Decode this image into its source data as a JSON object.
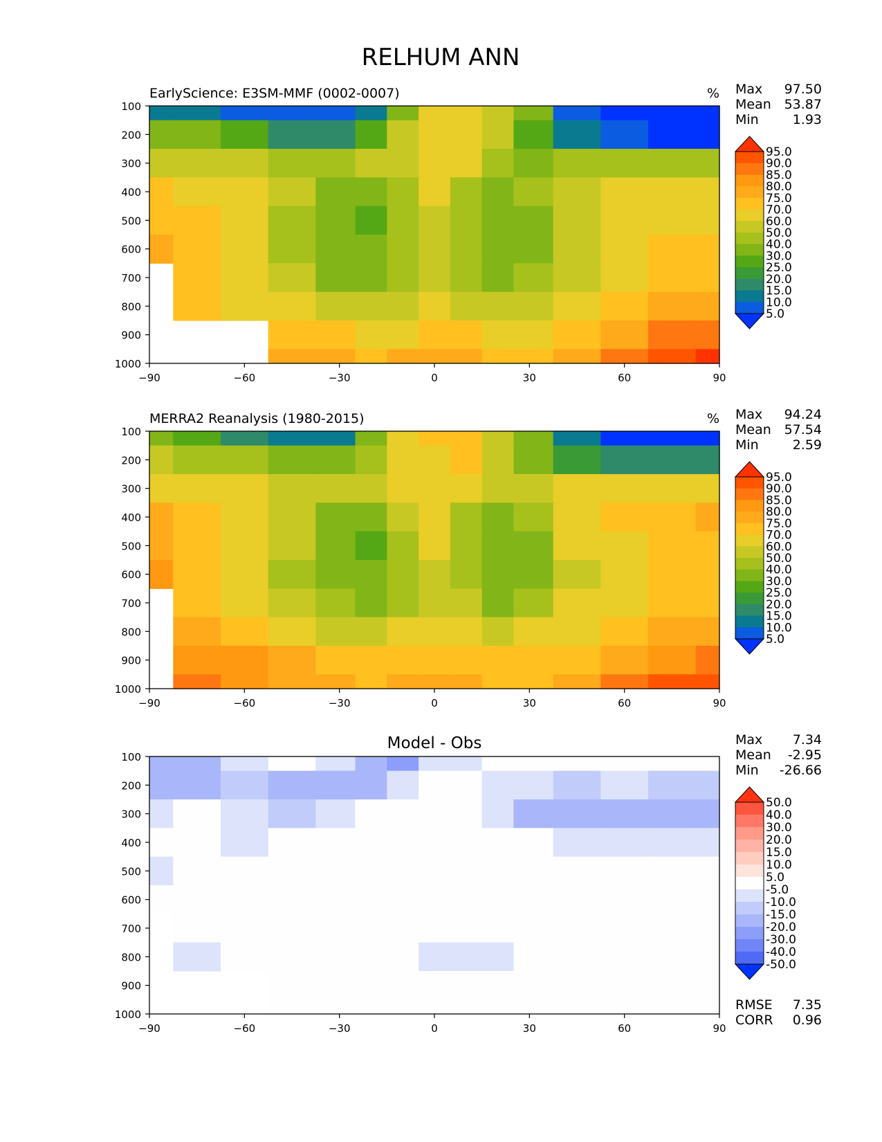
{
  "title": "RELHUM ANN",
  "panels": [
    {
      "title": "EarlyScience: E3SM-MMF (0002-0007)",
      "units": "%",
      "stats": [
        {
          "label": "Max",
          "value": "97.50"
        },
        {
          "label": "Mean",
          "value": "53.87"
        },
        {
          "label": "Min",
          "value": "1.93"
        }
      ],
      "colorbar": {
        "levels": [
          "95.0",
          "90.0",
          "85.0",
          "80.0",
          "75.0",
          "70.0",
          "60.0",
          "50.0",
          "40.0",
          "30.0",
          "25.0",
          "20.0",
          "15.0",
          "10.0",
          "5.0"
        ],
        "colors": [
          "#ff3300",
          "#ff5500",
          "#ff7711",
          "#ff9911",
          "#ffaa1a",
          "#ffc020",
          "#e9cd28",
          "#c8c825",
          "#a6c01c",
          "#82b518",
          "#55a815",
          "#3a9a35",
          "#2f8a6a",
          "#0a7a90",
          "#0b5ce0",
          "#0033ff"
        ]
      }
    },
    {
      "title": "MERRA2 Reanalysis (1980-2015)",
      "units": "%",
      "stats": [
        {
          "label": "Max",
          "value": "94.24"
        },
        {
          "label": "Mean",
          "value": "57.54"
        },
        {
          "label": "Min",
          "value": "2.59"
        }
      ],
      "colorbar": {
        "levels": [
          "95.0",
          "90.0",
          "85.0",
          "80.0",
          "75.0",
          "70.0",
          "60.0",
          "50.0",
          "40.0",
          "30.0",
          "25.0",
          "20.0",
          "15.0",
          "10.0",
          "5.0"
        ],
        "colors": [
          "#ff3300",
          "#ff5500",
          "#ff7711",
          "#ff9911",
          "#ffaa1a",
          "#ffc020",
          "#e9cd28",
          "#c8c825",
          "#a6c01c",
          "#82b518",
          "#55a815",
          "#3a9a35",
          "#2f8a6a",
          "#0a7a90",
          "#0b5ce0",
          "#0033ff"
        ]
      }
    },
    {
      "title": "Model - Obs",
      "units": "",
      "stats": [
        {
          "label": "Max",
          "value": "7.34"
        },
        {
          "label": "Mean",
          "value": "-2.95"
        },
        {
          "label": "Min",
          "value": "-26.66"
        }
      ],
      "colorbar": {
        "levels": [
          "50.0",
          "40.0",
          "30.0",
          "20.0",
          "15.0",
          "10.0",
          "5.0",
          "-5.0",
          "-10.0",
          "-15.0",
          "-20.0",
          "-30.0",
          "-40.0",
          "-50.0"
        ],
        "colors": [
          "#ff3311",
          "#ff5540",
          "#ff7766",
          "#ff9988",
          "#ffb3a6",
          "#ffccc0",
          "#ffe3dd",
          "#fefefe",
          "#dce3fb",
          "#c2ccfa",
          "#a9b7fa",
          "#8c9efa",
          "#6f85f8",
          "#4f6af5",
          "#0033ff"
        ]
      },
      "metrics": [
        {
          "label": "RMSE",
          "value": "7.35"
        },
        {
          "label": "CORR",
          "value": "0.96"
        }
      ]
    }
  ],
  "chart_data": [
    {
      "type": "heatmap",
      "title": "EarlyScience: E3SM-MMF (0002-0007)",
      "units": "%",
      "x_ticks": [
        -90,
        -60,
        -30,
        0,
        30,
        60,
        90
      ],
      "y_ticks": [
        100,
        200,
        300,
        400,
        500,
        600,
        700,
        800,
        900,
        1000
      ],
      "xlim": [
        -90,
        90
      ],
      "ylim": [
        1000,
        100
      ],
      "x": [
        -90,
        -75,
        -60,
        -45,
        -30,
        -20,
        -10,
        0,
        10,
        20,
        30,
        45,
        60,
        75,
        90
      ],
      "y": [
        100,
        200,
        300,
        400,
        500,
        600,
        700,
        800,
        900,
        1000
      ],
      "z": [
        [
          10,
          12,
          6,
          5,
          5,
          12,
          38,
          62,
          62,
          55,
          30,
          5,
          3,
          2,
          2
        ],
        [
          30,
          32,
          25,
          18,
          18,
          28,
          55,
          65,
          66,
          50,
          25,
          10,
          5,
          3,
          3
        ],
        [
          55,
          58,
          52,
          45,
          48,
          52,
          58,
          62,
          60,
          45,
          38,
          42,
          45,
          40,
          40
        ],
        [
          70,
          68,
          62,
          55,
          35,
          32,
          45,
          60,
          48,
          38,
          42,
          58,
          62,
          65,
          65
        ],
        [
          72,
          70,
          62,
          48,
          30,
          26,
          42,
          58,
          40,
          32,
          36,
          55,
          65,
          68,
          68
        ],
        [
          78,
          70,
          62,
          45,
          32,
          30,
          42,
          56,
          42,
          34,
          36,
          55,
          65,
          70,
          70
        ],
        [
          null,
          70,
          65,
          52,
          38,
          36,
          45,
          56,
          48,
          38,
          42,
          58,
          66,
          72,
          72
        ],
        [
          null,
          70,
          68,
          62,
          55,
          50,
          55,
          60,
          56,
          52,
          55,
          62,
          70,
          75,
          78
        ],
        [
          null,
          null,
          null,
          72,
          70,
          66,
          68,
          70,
          70,
          68,
          68,
          70,
          78,
          85,
          88
        ],
        [
          null,
          null,
          null,
          78,
          75,
          72,
          76,
          78,
          76,
          72,
          72,
          76,
          85,
          92,
          97
        ]
      ]
    },
    {
      "type": "heatmap",
      "title": "MERRA2 Reanalysis (1980-2015)",
      "units": "%",
      "x_ticks": [
        -90,
        -60,
        -30,
        0,
        30,
        60,
        90
      ],
      "y_ticks": [
        100,
        200,
        300,
        400,
        500,
        600,
        700,
        800,
        900,
        1000
      ],
      "xlim": [
        -90,
        90
      ],
      "ylim": [
        1000,
        100
      ],
      "x": [
        -90,
        -75,
        -60,
        -45,
        -30,
        -20,
        -10,
        0,
        10,
        20,
        30,
        45,
        60,
        75,
        90
      ],
      "y": [
        100,
        200,
        300,
        400,
        500,
        600,
        700,
        800,
        900,
        1000
      ],
      "z": [
        [
          30,
          28,
          15,
          10,
          12,
          30,
          60,
          72,
          72,
          58,
          35,
          10,
          4,
          3,
          3
        ],
        [
          50,
          48,
          40,
          35,
          35,
          45,
          62,
          68,
          70,
          56,
          35,
          22,
          15,
          15,
          15
        ],
        [
          65,
          62,
          60,
          58,
          55,
          56,
          62,
          66,
          62,
          52,
          55,
          60,
          62,
          60,
          60
        ],
        [
          75,
          72,
          68,
          55,
          36,
          34,
          50,
          62,
          48,
          34,
          45,
          65,
          70,
          72,
          75
        ],
        [
          78,
          72,
          66,
          50,
          30,
          25,
          45,
          60,
          42,
          30,
          36,
          60,
          68,
          70,
          72
        ],
        [
          80,
          72,
          66,
          48,
          32,
          30,
          45,
          58,
          42,
          32,
          38,
          58,
          68,
          70,
          70
        ],
        [
          null,
          74,
          68,
          55,
          40,
          38,
          48,
          58,
          50,
          38,
          45,
          60,
          68,
          70,
          70
        ],
        [
          null,
          78,
          72,
          65,
          55,
          55,
          60,
          66,
          62,
          58,
          60,
          66,
          72,
          76,
          78
        ],
        [
          null,
          82,
          82,
          75,
          72,
          70,
          72,
          74,
          72,
          70,
          70,
          72,
          78,
          84,
          88
        ],
        [
          null,
          88,
          84,
          78,
          75,
          72,
          75,
          76,
          76,
          72,
          72,
          75,
          85,
          90,
          94
        ]
      ]
    },
    {
      "type": "heatmap",
      "title": "Model - Obs",
      "units": "",
      "x_ticks": [
        -90,
        -60,
        -30,
        0,
        30,
        60,
        90
      ],
      "y_ticks": [
        100,
        200,
        300,
        400,
        500,
        600,
        700,
        800,
        900,
        1000
      ],
      "xlim": [
        -90,
        90
      ],
      "ylim": [
        1000,
        100
      ],
      "x": [
        -90,
        -75,
        -60,
        -45,
        -30,
        -20,
        -10,
        0,
        10,
        20,
        30,
        45,
        60,
        75,
        90
      ],
      "y": [
        100,
        200,
        300,
        400,
        500,
        600,
        700,
        800,
        900,
        1000
      ],
      "z": [
        [
          -20,
          -16,
          -9,
          -5,
          -7,
          -18,
          -22,
          -10,
          -10,
          -3,
          -5,
          -5,
          -1,
          -1,
          -1
        ],
        [
          -20,
          -16,
          -15,
          -17,
          -17,
          -17,
          -7,
          -3,
          -4,
          -6,
          -10,
          -12,
          -10,
          -12,
          -12
        ],
        [
          -10,
          -4,
          -8,
          -13,
          -7,
          -4,
          -4,
          -4,
          -2,
          -7,
          -17,
          -18,
          -17,
          -20,
          -20
        ],
        [
          -5,
          -4,
          -6,
          -1,
          -1,
          -2,
          -5,
          -2,
          0,
          4,
          -3,
          -7,
          -8,
          -7,
          -10
        ],
        [
          -6,
          -2,
          -4,
          -2,
          0,
          1,
          -3,
          -2,
          -2,
          2,
          0,
          -5,
          -3,
          -2,
          -4
        ],
        [
          -2,
          -2,
          -4,
          -3,
          0,
          0,
          -3,
          -2,
          0,
          2,
          -2,
          -3,
          -3,
          0,
          0
        ],
        [
          null,
          -4,
          -3,
          -3,
          -2,
          -2,
          -3,
          -2,
          -2,
          0,
          -3,
          -2,
          -2,
          2,
          2
        ],
        [
          null,
          -8,
          -4,
          -3,
          0,
          -5,
          -5,
          -6,
          -6,
          -6,
          -5,
          -4,
          -2,
          -1,
          0
        ],
        [
          null,
          null,
          null,
          -3,
          -2,
          -4,
          -4,
          -4,
          -2,
          -2,
          -2,
          -2,
          0,
          1,
          0
        ],
        [
          null,
          null,
          null,
          0,
          0,
          0,
          1,
          2,
          0,
          0,
          0,
          1,
          0,
          2,
          3
        ]
      ]
    }
  ]
}
